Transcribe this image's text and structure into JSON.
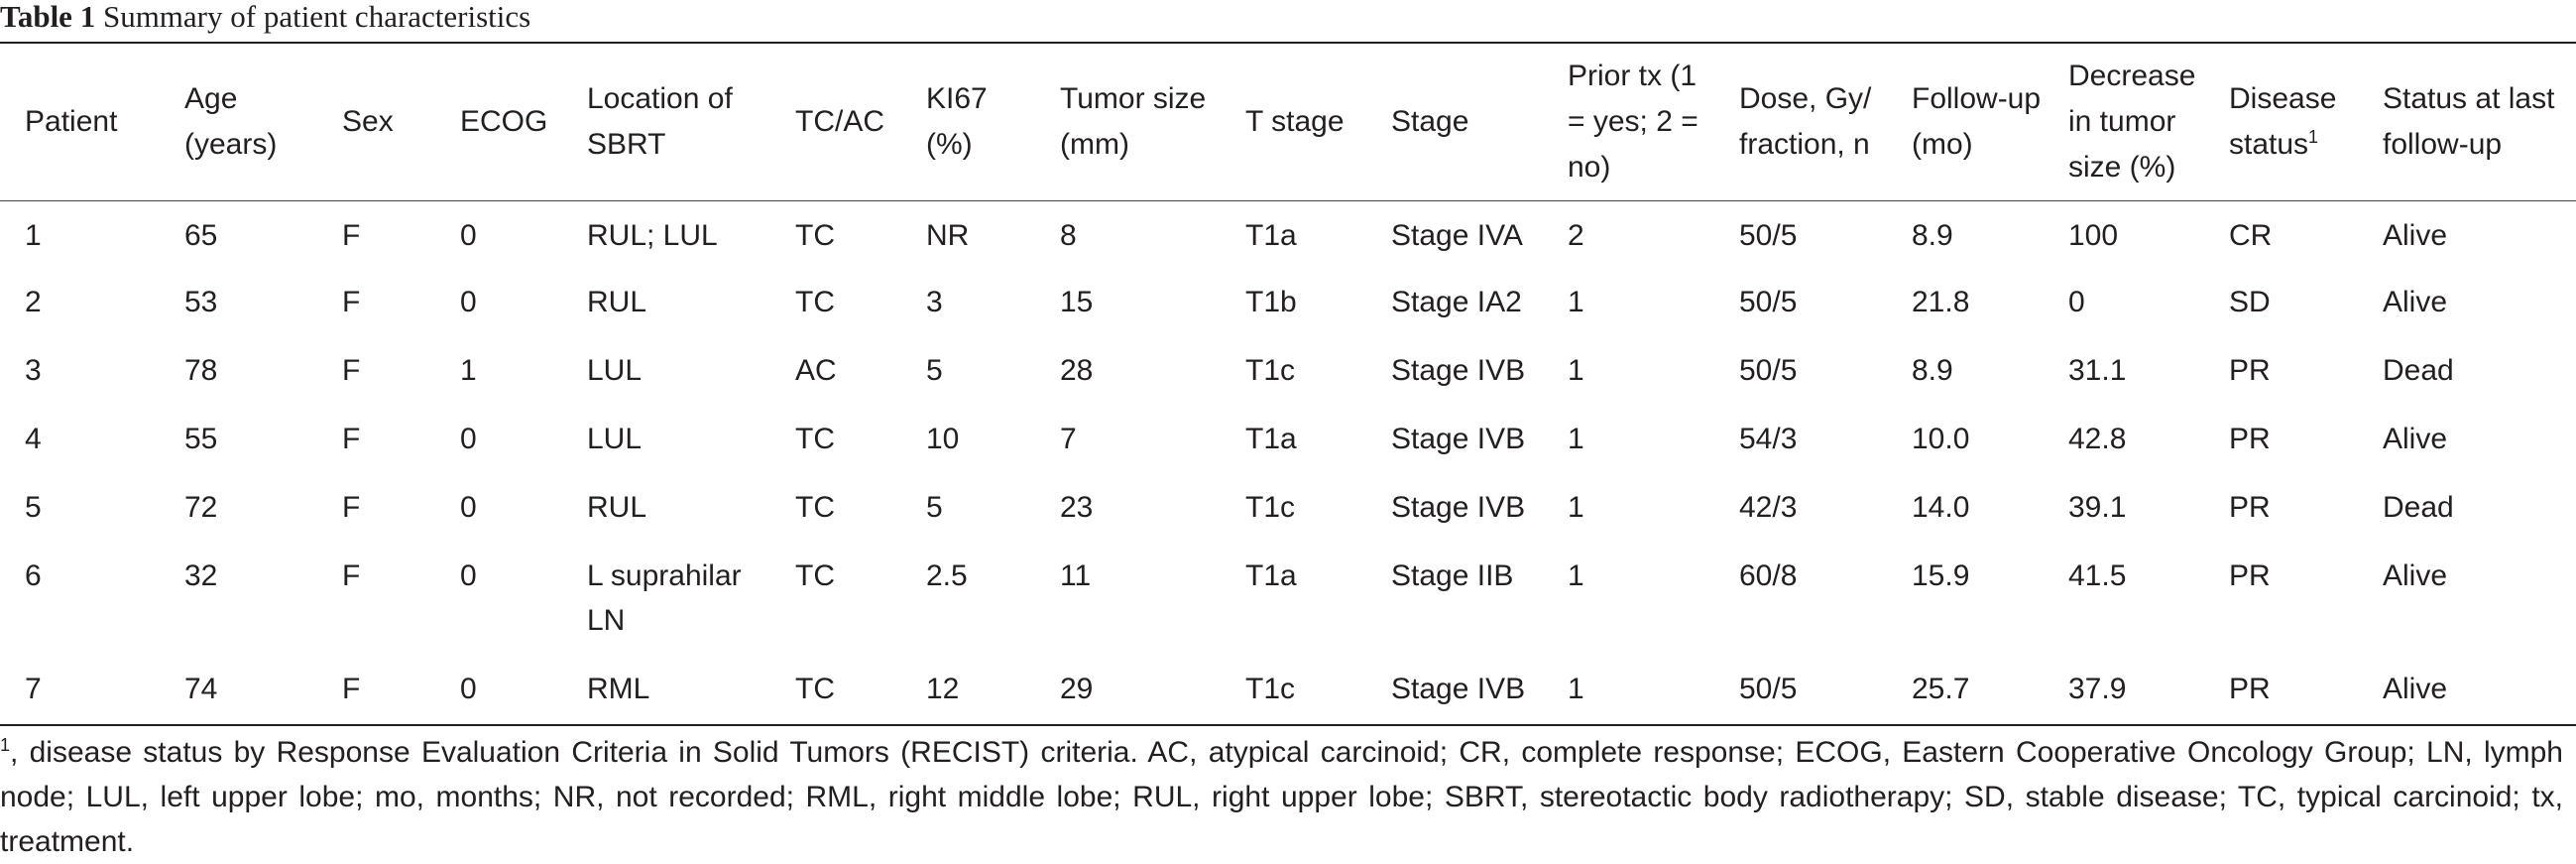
{
  "title": {
    "label": "Table 1",
    "text": "Summary of patient characteristics"
  },
  "columns": [
    {
      "key": "patient",
      "label": "Patient",
      "sup": ""
    },
    {
      "key": "age",
      "label": "Age (years)",
      "sup": ""
    },
    {
      "key": "sex",
      "label": "Sex",
      "sup": ""
    },
    {
      "key": "ecog",
      "label": "ECOG",
      "sup": ""
    },
    {
      "key": "location",
      "label": "Location of SBRT",
      "sup": ""
    },
    {
      "key": "tcac",
      "label": "TC/AC",
      "sup": ""
    },
    {
      "key": "ki67",
      "label": "KI67 (%)",
      "sup": ""
    },
    {
      "key": "tumor_size",
      "label": "Tumor size (mm)",
      "sup": ""
    },
    {
      "key": "t_stage",
      "label": "T stage",
      "sup": ""
    },
    {
      "key": "stage",
      "label": "Stage",
      "sup": ""
    },
    {
      "key": "prior_tx",
      "label": "Prior tx (1 = yes; 2 = no)",
      "sup": ""
    },
    {
      "key": "dose",
      "label": "Dose, Gy/ fraction, n",
      "sup": ""
    },
    {
      "key": "follow_up",
      "label": "Follow-up (mo)",
      "sup": ""
    },
    {
      "key": "decrease",
      "label": "Decrease in tumor size (%)",
      "sup": ""
    },
    {
      "key": "disease_status",
      "label": "Disease status",
      "sup": "1"
    },
    {
      "key": "status_last",
      "label": "Status at last follow-up",
      "sup": ""
    }
  ],
  "rows": [
    [
      "1",
      "65",
      "F",
      "0",
      "RUL; LUL",
      "TC",
      "NR",
      "8",
      "T1a",
      "Stage IVA",
      "2",
      "50/5",
      "8.9",
      "100",
      "CR",
      "Alive"
    ],
    [
      "2",
      "53",
      "F",
      "0",
      "RUL",
      "TC",
      "3",
      "15",
      "T1b",
      "Stage IA2",
      "1",
      "50/5",
      "21.8",
      "0",
      "SD",
      "Alive"
    ],
    [
      "3",
      "78",
      "F",
      "1",
      "LUL",
      "AC",
      "5",
      "28",
      "T1c",
      "Stage IVB",
      "1",
      "50/5",
      "8.9",
      "31.1",
      "PR",
      "Dead"
    ],
    [
      "4",
      "55",
      "F",
      "0",
      "LUL",
      "TC",
      "10",
      "7",
      "T1a",
      "Stage IVB",
      "1",
      "54/3",
      "10.0",
      "42.8",
      "PR",
      "Alive"
    ],
    [
      "5",
      "72",
      "F",
      "0",
      "RUL",
      "TC",
      "5",
      "23",
      "T1c",
      "Stage IVB",
      "1",
      "42/3",
      "14.0",
      "39.1",
      "PR",
      "Dead"
    ],
    [
      "6",
      "32",
      "F",
      "0",
      "L suprahilar LN",
      "TC",
      "2.5",
      "11",
      "T1a",
      "Stage IIB",
      "1",
      "60/8",
      "15.9",
      "41.5",
      "PR",
      "Alive"
    ],
    [
      "7",
      "74",
      "F",
      "0",
      "RML",
      "TC",
      "12",
      "29",
      "T1c",
      "Stage IVB",
      "1",
      "50/5",
      "25.7",
      "37.9",
      "PR",
      "Alive"
    ]
  ],
  "footnote": {
    "sup": "1",
    "text": ", disease status by Response Evaluation Criteria in Solid Tumors (RECIST) criteria. AC, atypical carcinoid; CR, complete response; ECOG, Eastern Cooperative Oncology Group; LN, lymph node; LUL, left upper lobe; mo, months; NR, not recorded; RML, right middle lobe; RUL, right upper lobe; SBRT, stereotactic body radiotherapy; SD, stable disease; TC, typical carcinoid; tx, treatment."
  }
}
